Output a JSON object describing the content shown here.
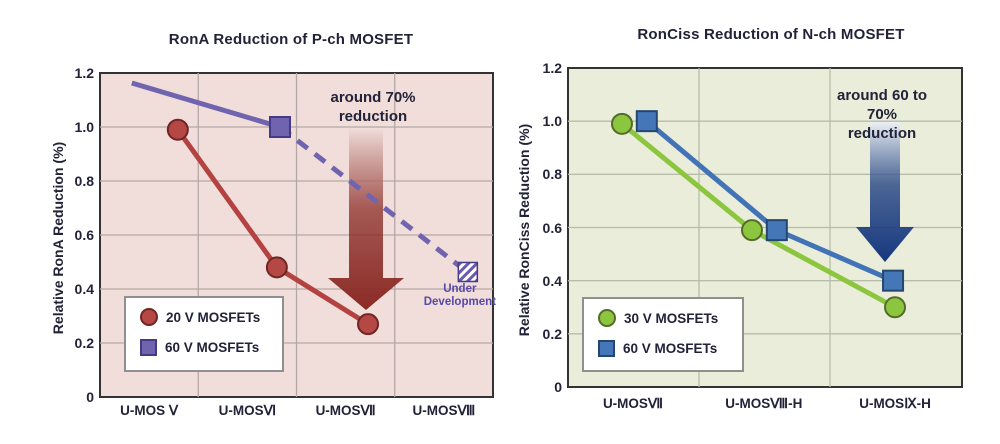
{
  "page": {
    "background": "#ffffff",
    "text_color": "#222238"
  },
  "chart_data": [
    {
      "type": "line",
      "title": "RonA Reduction of P-ch MOSFET",
      "ylabel": "Relative RonA Reduction (%)",
      "ylim": [
        0,
        1.2
      ],
      "grid": true,
      "legend_position": "lower-left",
      "yticks": [
        {
          "label": "1.2",
          "value": 1.2
        },
        {
          "label": "1.0",
          "value": 1.0
        },
        {
          "label": "0.8",
          "value": 0.8
        },
        {
          "label": "0.6",
          "value": 0.6
        },
        {
          "label": "0.4",
          "value": 0.4
        },
        {
          "label": "0.2",
          "value": 0.2
        },
        {
          "label": "0",
          "value": 0
        }
      ],
      "categories": [
        "U-MOS Ⅴ",
        "U-MOSⅥ",
        "U-MOSⅦ",
        "U-MOSⅧ"
      ],
      "category_fx": [
        0.125,
        0.375,
        0.625,
        0.875
      ],
      "vgrid_fx": [
        0.25,
        0.5,
        0.75
      ],
      "plot_bg": "#f1dedb",
      "grid_color": "#b3a7a5",
      "series": [
        {
          "name": "20 V MOSFETs",
          "marker": "circle",
          "line_color": "#b34241",
          "marker_fill": "#b54845",
          "marker_stroke": "#6e2523",
          "segments": [
            {
              "dashed": false,
              "points": [
                [
                  0.198,
                  0.99
                ],
                [
                  0.45,
                  0.48
                ],
                [
                  0.682,
                  0.27
                ]
              ]
            }
          ],
          "markers": [
            [
              0.198,
              0.99
            ],
            [
              0.45,
              0.48
            ],
            [
              0.682,
              0.27
            ]
          ]
        },
        {
          "name": "60 V MOSFETs",
          "marker": "square",
          "line_color": "#7164af",
          "marker_fill": "#7164af",
          "marker_stroke": "#453a85",
          "segments": [
            {
              "dashed": false,
              "points": [
                [
                  0.081,
                  1.163
                ],
                [
                  0.458,
                  1.0
                ]
              ]
            },
            {
              "dashed": true,
              "points": [
                [
                  0.458,
                  1.0
                ],
                [
                  0.928,
                  0.47
                ]
              ]
            }
          ],
          "markers": [
            [
              0.458,
              1.0
            ]
          ],
          "end_marker": {
            "shape": "hatched-square",
            "fx": 0.936,
            "value": 0.463,
            "label_lines": [
              "Under",
              "Development"
            ],
            "label_color": "#5748a8",
            "hatch_color": "#6a5ab0"
          }
        }
      ],
      "annotation": {
        "lines": [
          "around 70%",
          "reduction"
        ],
        "arrow_gradient": [
          "#f0ddd9",
          "#8b2b26"
        ]
      }
    },
    {
      "type": "line",
      "title": "RonCiss Reduction of N-ch MOSFET",
      "ylabel": "Relative RonCiss Reduction (%)",
      "ylim": [
        0,
        1.2
      ],
      "grid": true,
      "legend_position": "lower-left",
      "yticks": [
        {
          "label": "1.2",
          "value": 1.2
        },
        {
          "label": "1.0",
          "value": 1.0
        },
        {
          "label": "0.8",
          "value": 0.8
        },
        {
          "label": "0.6",
          "value": 0.6
        },
        {
          "label": "0.4",
          "value": 0.4
        },
        {
          "label": "0.2",
          "value": 0.2
        },
        {
          "label": "0",
          "value": 0
        }
      ],
      "categories": [
        "U-MOSⅦ",
        "U-MOSⅧ-H",
        "U-MOSⅨ-H"
      ],
      "category_fx": [
        0.165,
        0.497,
        0.83
      ],
      "vgrid_fx": [
        0.3325,
        0.665
      ],
      "plot_bg": "#e9edd9",
      "grid_color": "#b8bcab",
      "series": [
        {
          "name": "30 V MOSFETs",
          "marker": "circle",
          "line_color": "#8cc63f",
          "marker_fill": "#8cc63f",
          "marker_stroke": "#556b2a",
          "segments": [
            {
              "dashed": false,
              "points": [
                [
                  0.137,
                  0.99
                ],
                [
                  0.467,
                  0.59
                ],
                [
                  0.83,
                  0.3
                ]
              ]
            }
          ],
          "markers": [
            [
              0.137,
              0.99
            ],
            [
              0.467,
              0.59
            ],
            [
              0.83,
              0.3
            ]
          ]
        },
        {
          "name": "60 V MOSFETs",
          "marker": "square",
          "line_color": "#4173b6",
          "marker_fill": "#4577b8",
          "marker_stroke": "#24466f",
          "segments": [
            {
              "dashed": false,
              "points": [
                [
                  0.2,
                  1.0
                ],
                [
                  0.53,
                  0.59
                ],
                [
                  0.825,
                  0.4
                ]
              ]
            }
          ],
          "markers": [
            [
              0.2,
              1.0
            ],
            [
              0.53,
              0.59
            ],
            [
              0.825,
              0.4
            ]
          ]
        }
      ],
      "annotation": {
        "lines": [
          "around 60 to 70%",
          "reduction"
        ],
        "arrow_gradient": [
          "#edf1f7",
          "#16387e"
        ]
      }
    }
  ]
}
